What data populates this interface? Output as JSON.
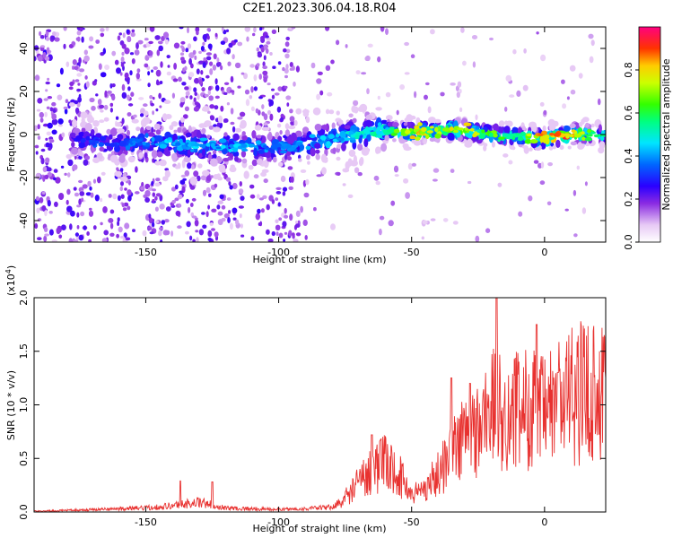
{
  "figure": {
    "title": "C2E1.2023.306.04.18.R04"
  },
  "chart_data": [
    {
      "type": "heatmap",
      "panel": "spectrogram",
      "xlabel": "Height of straight line (km)",
      "ylabel": "Frequency (Hz)",
      "xlim": [
        -192,
        23
      ],
      "ylim": [
        -50,
        50
      ],
      "xticks": [
        -150,
        -100,
        -50,
        0
      ],
      "xtick_labels": [
        "-150",
        "-100",
        "-50",
        "0"
      ],
      "yticks": [
        -40,
        -20,
        0,
        20,
        40
      ],
      "ytick_labels": [
        "-40",
        "-20",
        "0",
        "20",
        "40"
      ],
      "colorbar": {
        "label": "Normalized spectral amplitude",
        "range": [
          0,
          1
        ],
        "ticks": [
          0.0,
          0.2,
          0.4,
          0.6,
          0.8
        ],
        "tick_labels": [
          "0.0",
          "0.2",
          "0.4",
          "0.6",
          "0.8"
        ],
        "colormap": "rainbow (white→purple→blue→cyan→green→yellow→red→magenta)"
      },
      "ridge": {
        "description": "frequency centre of the dominant band vs height",
        "x": [
          -180,
          -170,
          -160,
          -150,
          -140,
          -130,
          -120,
          -110,
          -100,
          -90,
          -80,
          -70,
          -60,
          -50,
          -40,
          -30,
          -20,
          -10,
          0,
          10,
          20
        ],
        "y": [
          -2,
          -3,
          -5,
          -3,
          -4,
          -5,
          -6,
          -6,
          -6,
          -4,
          -2,
          0,
          2,
          1,
          2,
          2,
          0,
          -1,
          -2,
          0,
          0
        ],
        "peak_amplitude": [
          0.3,
          0.35,
          0.35,
          0.4,
          0.45,
          0.45,
          0.45,
          0.45,
          0.4,
          0.45,
          0.45,
          0.5,
          0.55,
          0.85,
          0.75,
          0.8,
          0.7,
          0.6,
          0.9,
          0.9,
          0.55
        ]
      }
    },
    {
      "type": "line",
      "panel": "snr",
      "xlabel": "Height of straight line (km)",
      "ylabel": "SNR (10 * v/v)",
      "scale_label": "(x10",
      "scale_exponent": "4",
      "scale_close": ")",
      "xlim": [
        -192,
        23
      ],
      "ylim": [
        0,
        2.0
      ],
      "xticks": [
        -150,
        -100,
        -50,
        0
      ],
      "xtick_labels": [
        "-150",
        "-100",
        "-50",
        "0"
      ],
      "yticks": [
        0.0,
        0.5,
        1.0,
        1.5,
        2.0
      ],
      "ytick_labels": [
        "0.0",
        "0.5",
        "1.0",
        "1.5",
        "2.0"
      ],
      "color": "#e8312f",
      "envelope": {
        "x": [
          -192,
          -180,
          -170,
          -160,
          -150,
          -140,
          -130,
          -120,
          -110,
          -100,
          -90,
          -80,
          -75,
          -70,
          -65,
          -60,
          -55,
          -50,
          -45,
          -40,
          -35,
          -30,
          -25,
          -20,
          -15,
          -10,
          -5,
          0,
          5,
          10,
          15,
          20,
          23
        ],
        "y": [
          0.01,
          0.02,
          0.03,
          0.04,
          0.05,
          0.08,
          0.12,
          0.05,
          0.04,
          0.03,
          0.04,
          0.06,
          0.15,
          0.3,
          0.45,
          0.5,
          0.4,
          0.18,
          0.25,
          0.4,
          0.6,
          0.8,
          0.85,
          1.1,
          1.0,
          1.05,
          1.1,
          1.0,
          1.15,
          1.2,
          1.25,
          1.3,
          1.3
        ]
      },
      "spikes": [
        {
          "x": -137,
          "y": 0.29
        },
        {
          "x": -125,
          "y": 0.28
        },
        {
          "x": -65,
          "y": 0.72
        },
        {
          "x": -35,
          "y": 1.25
        },
        {
          "x": -28,
          "y": 1.2
        },
        {
          "x": -18,
          "y": 2.0
        },
        {
          "x": -3,
          "y": 1.75
        },
        {
          "x": 5,
          "y": 1.3
        }
      ]
    }
  ]
}
